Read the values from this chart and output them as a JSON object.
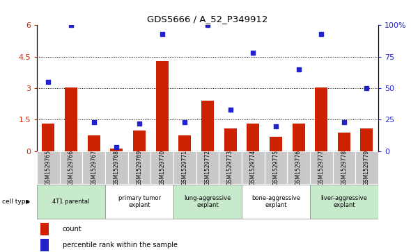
{
  "title": "GDS5666 / A_52_P349912",
  "samples": [
    "GSM1529765",
    "GSM1529766",
    "GSM1529767",
    "GSM1529768",
    "GSM1529769",
    "GSM1529770",
    "GSM1529771",
    "GSM1529772",
    "GSM1529773",
    "GSM1529774",
    "GSM1529775",
    "GSM1529776",
    "GSM1529777",
    "GSM1529778",
    "GSM1529779"
  ],
  "counts": [
    1.3,
    3.05,
    0.75,
    0.12,
    1.0,
    4.3,
    0.75,
    2.4,
    1.1,
    1.3,
    0.7,
    1.3,
    3.05,
    0.9,
    1.1
  ],
  "percentiles": [
    55,
    100,
    23,
    3,
    22,
    93,
    23,
    100,
    33,
    78,
    20,
    65,
    93,
    23,
    50
  ],
  "ylim_left": [
    0,
    6
  ],
  "ylim_right": [
    0,
    100
  ],
  "yticks_left": [
    0,
    1.5,
    3.0,
    4.5,
    6.0
  ],
  "yticks_right": [
    0,
    25,
    50,
    75,
    100
  ],
  "bar_color": "#cc2200",
  "dot_color": "#2222cc",
  "groups": [
    {
      "label": "4T1 parental",
      "start": 0,
      "end": 3,
      "color": "#c8eacc"
    },
    {
      "label": "primary tumor\nexplant",
      "start": 3,
      "end": 6,
      "color": "#ffffff"
    },
    {
      "label": "lung-aggressive\nexplant",
      "start": 6,
      "end": 9,
      "color": "#c8eacc"
    },
    {
      "label": "bone-aggressive\nexplant",
      "start": 9,
      "end": 12,
      "color": "#ffffff"
    },
    {
      "label": "liver-aggressive\nexplant",
      "start": 12,
      "end": 15,
      "color": "#c8eacc"
    }
  ],
  "tick_label_color_left": "#cc2200",
  "tick_label_color_right": "#2222cc",
  "legend_count_label": "count",
  "legend_pct_label": "percentile rank within the sample",
  "cell_type_label": "cell type",
  "sample_box_color": "#c8c8c8",
  "plot_bg": "#ffffff"
}
